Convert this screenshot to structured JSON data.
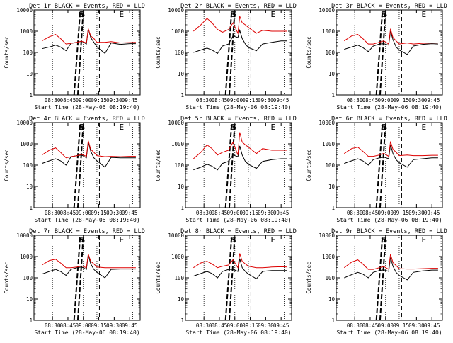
{
  "colors": {
    "events": "#000000",
    "lld": "#dd0000",
    "axis": "#000000",
    "background": "#ffffff"
  },
  "shared": {
    "ylabel": "Counts/sec",
    "xlabel": "Start Time (28-May-06 08:19:40)",
    "x_ticks": [
      "08:30",
      "08:45",
      "09:00",
      "09:15",
      "09:30",
      "09:45"
    ],
    "y_ticks": [
      "1",
      "10",
      "100",
      "1000",
      "10000"
    ],
    "marker_S": "S",
    "marker_E": "E"
  },
  "chart_data": [
    {
      "type": "line",
      "panel": "det1",
      "title": "Det 1r BLACK = Events, RED = LLD",
      "xlabel": "Start Time (28-May-06 08:19:40)",
      "ylabel": "Counts/sec",
      "ylim": [
        1,
        10000
      ],
      "yscale": "log",
      "x_ticks": [
        "08:30",
        "08:45",
        "09:00",
        "09:15",
        "09:30",
        "09:45"
      ],
      "y_ticks": [
        "1",
        "10",
        "100",
        "1000",
        "10000"
      ],
      "x": [
        8.33,
        8.45,
        8.55,
        8.63,
        8.72,
        8.8,
        8.9,
        8.97,
        9.05,
        9.08,
        9.12,
        9.17,
        9.22,
        9.35,
        9.45,
        9.6,
        9.75,
        9.85
      ],
      "series": [
        {
          "name": "Events",
          "values": [
            150,
            180,
            220,
            180,
            120,
            270,
            300,
            340,
            250,
            1300,
            500,
            300,
            180,
            90,
            280,
            240,
            260,
            260
          ]
        },
        {
          "name": "LLD",
          "values": [
            350,
            550,
            700,
            450,
            250,
            270,
            300,
            340,
            280,
            1300,
            600,
            450,
            300,
            300,
            320,
            280,
            290,
            300
          ]
        }
      ]
    },
    {
      "type": "line",
      "panel": "det2",
      "title": "Det 2r BLACK = Events, RED = LLD",
      "xlabel": "Start Time (28-May-06 08:19:40)",
      "ylabel": "Counts/sec",
      "ylim": [
        1,
        10000
      ],
      "yscale": "log",
      "x_ticks": [
        "08:30",
        "08:45",
        "09:00",
        "09:15",
        "09:30",
        "09:45"
      ],
      "y_ticks": [
        "1",
        "10",
        "100",
        "1000",
        "10000"
      ],
      "x": [
        8.33,
        8.45,
        8.55,
        8.63,
        8.72,
        8.8,
        8.9,
        8.97,
        9.05,
        9.08,
        9.12,
        9.17,
        9.22,
        9.35,
        9.45,
        9.6,
        9.75,
        9.85
      ],
      "series": [
        {
          "name": "Events",
          "values": [
            100,
            130,
            160,
            130,
            90,
            200,
            250,
            600,
            500,
            1100,
            450,
            250,
            170,
            120,
            250,
            300,
            350,
            350
          ]
        },
        {
          "name": "LLD",
          "values": [
            1000,
            2000,
            4000,
            2500,
            1200,
            900,
            1200,
            2500,
            800,
            5000,
            2500,
            2000,
            1500,
            800,
            1100,
            1000,
            1000,
            1000
          ]
        }
      ]
    },
    {
      "type": "line",
      "panel": "det3",
      "title": "Det 3r BLACK = Events, RED = LLD",
      "xlabel": "Start Time (28-May-06 08:19:40)",
      "ylabel": "Counts/sec",
      "ylim": [
        1,
        10000
      ],
      "yscale": "log",
      "x_ticks": [
        "08:30",
        "08:45",
        "09:00",
        "09:15",
        "09:30",
        "09:45"
      ],
      "y_ticks": [
        "1",
        "10",
        "100",
        "1000",
        "10000"
      ],
      "x": [
        8.33,
        8.45,
        8.55,
        8.63,
        8.72,
        8.8,
        8.9,
        8.97,
        9.05,
        9.08,
        9.12,
        9.17,
        9.22,
        9.35,
        9.45,
        9.6,
        9.75,
        9.85
      ],
      "series": [
        {
          "name": "Events",
          "values": [
            140,
            180,
            220,
            170,
            110,
            200,
            250,
            260,
            220,
            1000,
            400,
            180,
            130,
            80,
            200,
            240,
            260,
            250
          ]
        },
        {
          "name": "LLD",
          "values": [
            350,
            600,
            700,
            450,
            250,
            250,
            300,
            350,
            250,
            1300,
            500,
            350,
            250,
            280,
            250,
            270,
            280,
            280
          ]
        }
      ]
    },
    {
      "type": "line",
      "panel": "det4",
      "title": "Det 4r BLACK = Events, RED = LLD",
      "xlabel": "Start Time (28-May-06 08:19:40)",
      "ylabel": "Counts/sec",
      "ylim": [
        1,
        10000
      ],
      "yscale": "log",
      "x_ticks": [
        "08:30",
        "08:45",
        "09:00",
        "09:15",
        "09:30",
        "09:45"
      ],
      "y_ticks": [
        "1",
        "10",
        "100",
        "1000",
        "10000"
      ],
      "x": [
        8.33,
        8.45,
        8.55,
        8.63,
        8.72,
        8.8,
        8.9,
        8.97,
        9.05,
        9.08,
        9.12,
        9.17,
        9.22,
        9.35,
        9.45,
        9.6,
        9.75,
        9.85
      ],
      "series": [
        {
          "name": "Events",
          "values": [
            120,
            160,
            200,
            160,
            100,
            250,
            280,
            300,
            220,
            1200,
            450,
            220,
            160,
            80,
            230,
            220,
            220,
            220
          ]
        },
        {
          "name": "LLD",
          "values": [
            300,
            500,
            650,
            400,
            220,
            250,
            280,
            320,
            260,
            1400,
            550,
            400,
            280,
            250,
            260,
            250,
            260,
            260
          ]
        }
      ]
    },
    {
      "type": "line",
      "panel": "det5",
      "title": "Det 5r BLACK = Events, RED = LLD",
      "xlabel": "Start Time (28-May-06 08:19:40)",
      "ylabel": "Counts/sec",
      "ylim": [
        1,
        10000
      ],
      "yscale": "log",
      "x_ticks": [
        "08:30",
        "08:45",
        "09:00",
        "09:15",
        "09:30",
        "09:45"
      ],
      "y_ticks": [
        "1",
        "10",
        "100",
        "1000",
        "10000"
      ],
      "x": [
        8.33,
        8.45,
        8.55,
        8.63,
        8.72,
        8.8,
        8.9,
        8.97,
        9.05,
        9.08,
        9.12,
        9.17,
        9.22,
        9.35,
        9.45,
        9.6,
        9.75,
        9.85
      ],
      "series": [
        {
          "name": "Events",
          "values": [
            60,
            80,
            110,
            90,
            60,
            120,
            150,
            300,
            250,
            800,
            300,
            150,
            110,
            70,
            150,
            180,
            200,
            200
          ]
        },
        {
          "name": "LLD",
          "values": [
            200,
            400,
            900,
            600,
            300,
            400,
            500,
            1200,
            300,
            3500,
            1200,
            900,
            700,
            350,
            600,
            500,
            500,
            500
          ]
        }
      ]
    },
    {
      "type": "line",
      "panel": "det6",
      "title": "Det 6r BLACK = Events, RED = LLD",
      "xlabel": "Start Time (28-May-06 08:19:40)",
      "ylabel": "Counts/sec",
      "ylim": [
        1,
        10000
      ],
      "yscale": "log",
      "x_ticks": [
        "08:30",
        "08:45",
        "09:00",
        "09:15",
        "09:30",
        "09:45"
      ],
      "y_ticks": [
        "1",
        "10",
        "100",
        "1000",
        "10000"
      ],
      "x": [
        8.33,
        8.45,
        8.55,
        8.63,
        8.72,
        8.8,
        8.9,
        8.97,
        9.05,
        9.08,
        9.12,
        9.17,
        9.22,
        9.35,
        9.45,
        9.6,
        9.75,
        9.85
      ],
      "series": [
        {
          "name": "Events",
          "values": [
            120,
            160,
            200,
            160,
            100,
            180,
            220,
            240,
            200,
            900,
            350,
            180,
            130,
            80,
            180,
            200,
            220,
            220
          ]
        },
        {
          "name": "LLD",
          "values": [
            350,
            600,
            700,
            450,
            260,
            260,
            300,
            360,
            260,
            1300,
            550,
            400,
            280,
            300,
            280,
            280,
            290,
            290
          ]
        }
      ]
    },
    {
      "type": "line",
      "panel": "det7",
      "title": "Det 7r BLACK = Events, RED = LLD",
      "xlabel": "Start Time (28-May-06 08:19:40)",
      "ylabel": "Counts/sec",
      "ylim": [
        1,
        10000
      ],
      "yscale": "log",
      "x_ticks": [
        "08:30",
        "08:45",
        "09:00",
        "09:15",
        "09:30",
        "09:45"
      ],
      "y_ticks": [
        "1",
        "10",
        "100",
        "1000",
        "10000"
      ],
      "x": [
        8.33,
        8.45,
        8.55,
        8.63,
        8.72,
        8.8,
        8.9,
        8.97,
        9.05,
        9.08,
        9.12,
        9.17,
        9.22,
        9.35,
        9.45,
        9.6,
        9.75,
        9.85
      ],
      "series": [
        {
          "name": "Events",
          "values": [
            150,
            200,
            250,
            200,
            130,
            250,
            300,
            320,
            250,
            1200,
            450,
            250,
            180,
            100,
            250,
            260,
            260,
            260
          ]
        },
        {
          "name": "LLD",
          "values": [
            400,
            650,
            750,
            500,
            300,
            300,
            320,
            360,
            300,
            1300,
            600,
            450,
            320,
            300,
            300,
            300,
            300,
            300
          ]
        }
      ]
    },
    {
      "type": "line",
      "panel": "det8",
      "title": "Det 8r BLACK = Events, RED = LLD",
      "xlabel": "Start Time (28-May-06 08:19:40)",
      "ylabel": "Counts/sec",
      "ylim": [
        1,
        10000
      ],
      "yscale": "log",
      "x_ticks": [
        "08:30",
        "08:45",
        "09:00",
        "09:15",
        "09:30",
        "09:45"
      ],
      "y_ticks": [
        "1",
        "10",
        "100",
        "1000",
        "10000"
      ],
      "x": [
        8.33,
        8.45,
        8.55,
        8.63,
        8.72,
        8.8,
        8.9,
        8.97,
        9.05,
        9.08,
        9.12,
        9.17,
        9.22,
        9.35,
        9.45,
        9.6,
        9.75,
        9.85
      ],
      "series": [
        {
          "name": "Events",
          "values": [
            120,
            160,
            200,
            160,
            100,
            200,
            250,
            250,
            200,
            800,
            300,
            200,
            150,
            90,
            200,
            220,
            220,
            220
          ]
        },
        {
          "name": "LLD",
          "values": [
            300,
            500,
            600,
            450,
            300,
            350,
            400,
            700,
            300,
            1400,
            600,
            450,
            350,
            300,
            300,
            320,
            330,
            320
          ]
        }
      ]
    },
    {
      "type": "line",
      "panel": "det9",
      "title": "Det 9r BLACK = Events, RED = LLD",
      "xlabel": "Start Time (28-May-06 08:19:40)",
      "ylabel": "Counts/sec",
      "ylim": [
        1,
        10000
      ],
      "yscale": "log",
      "x_ticks": [
        "08:30",
        "08:45",
        "09:00",
        "09:15",
        "09:30",
        "09:45"
      ],
      "y_ticks": [
        "1",
        "10",
        "100",
        "1000",
        "10000"
      ],
      "x": [
        8.33,
        8.45,
        8.55,
        8.63,
        8.72,
        8.8,
        8.9,
        8.97,
        9.05,
        9.08,
        9.12,
        9.17,
        9.22,
        9.35,
        9.45,
        9.6,
        9.75,
        9.85
      ],
      "series": [
        {
          "name": "Events",
          "values": [
            100,
            140,
            180,
            150,
            100,
            180,
            220,
            240,
            200,
            900,
            350,
            180,
            130,
            80,
            180,
            210,
            230,
            230
          ]
        },
        {
          "name": "LLD",
          "values": [
            300,
            550,
            700,
            450,
            250,
            250,
            300,
            340,
            250,
            1300,
            520,
            380,
            270,
            260,
            260,
            270,
            280,
            280
          ]
        }
      ]
    }
  ]
}
